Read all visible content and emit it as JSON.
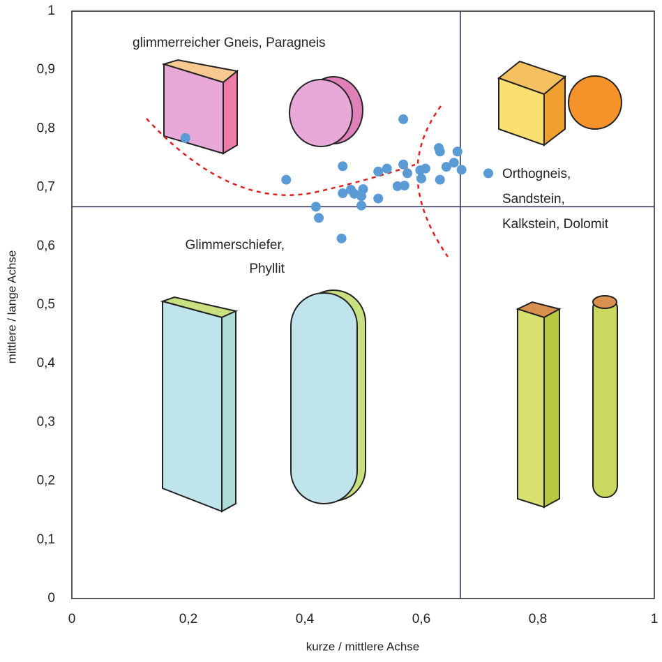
{
  "chart_data": {
    "type": "scatter",
    "x_label": "kurze / mittlere Achse",
    "y_label": "mittlere / lange Achse",
    "annotations": [
      [
        "glimmerreicher Gneis, Paragneis"
      ],
      [
        "Orthogneis,",
        "Sandstein,",
        "Kalkstein, Dolomit"
      ],
      [
        "Glimmerschiefer,",
        "Phyllit"
      ]
    ],
    "xlim": [
      0,
      1
    ],
    "ylim": [
      0,
      1
    ],
    "xticks": [
      0,
      {
        "value": 0.2,
        "label": "0,2"
      },
      {
        "value": 0.4,
        "label": "0,4"
      },
      {
        "value": 0.6,
        "label": "0,6"
      },
      {
        "value": 0.8,
        "label": "0,8"
      },
      1
    ],
    "yticks": [
      0,
      {
        "value": 0.1,
        "label": "0,1"
      },
      {
        "value": 0.2,
        "label": "0,2"
      },
      {
        "value": 0.3,
        "label": "0,3"
      },
      {
        "value": 0.4,
        "label": "0,4"
      },
      {
        "value": 0.5,
        "label": "0,5"
      },
      {
        "value": 0.6,
        "label": "0,6"
      },
      {
        "value": 0.7,
        "label": "0,7"
      },
      {
        "value": 0.8,
        "label": "0,8"
      },
      {
        "value": 0.9,
        "label": "0,9"
      },
      1
    ],
    "reference_lines": {
      "x": 0.667,
      "y": 0.667
    },
    "grid": false,
    "series": [
      {
        "color": "#5b9bd5",
        "x": [
          0.195,
          0.368,
          0.465,
          0.569,
          0.419,
          0.424,
          0.463,
          0.465,
          0.479,
          0.485,
          0.497,
          0.497,
          0.5,
          0.526,
          0.526,
          0.541,
          0.559,
          0.569,
          0.571,
          0.576,
          0.598,
          0.6,
          0.607,
          0.63,
          0.632,
          0.632,
          0.643,
          0.656,
          0.662,
          0.669,
          0.715
        ],
        "values": [
          0.784,
          0.713,
          0.736,
          0.816,
          0.667,
          0.648,
          0.613,
          0.69,
          0.696,
          0.689,
          0.685,
          0.669,
          0.697,
          0.681,
          0.727,
          0.732,
          0.702,
          0.739,
          0.703,
          0.724,
          0.729,
          0.715,
          0.732,
          0.767,
          0.761,
          0.713,
          0.735,
          0.742,
          0.761,
          0.73,
          0.724
        ]
      }
    ]
  }
}
